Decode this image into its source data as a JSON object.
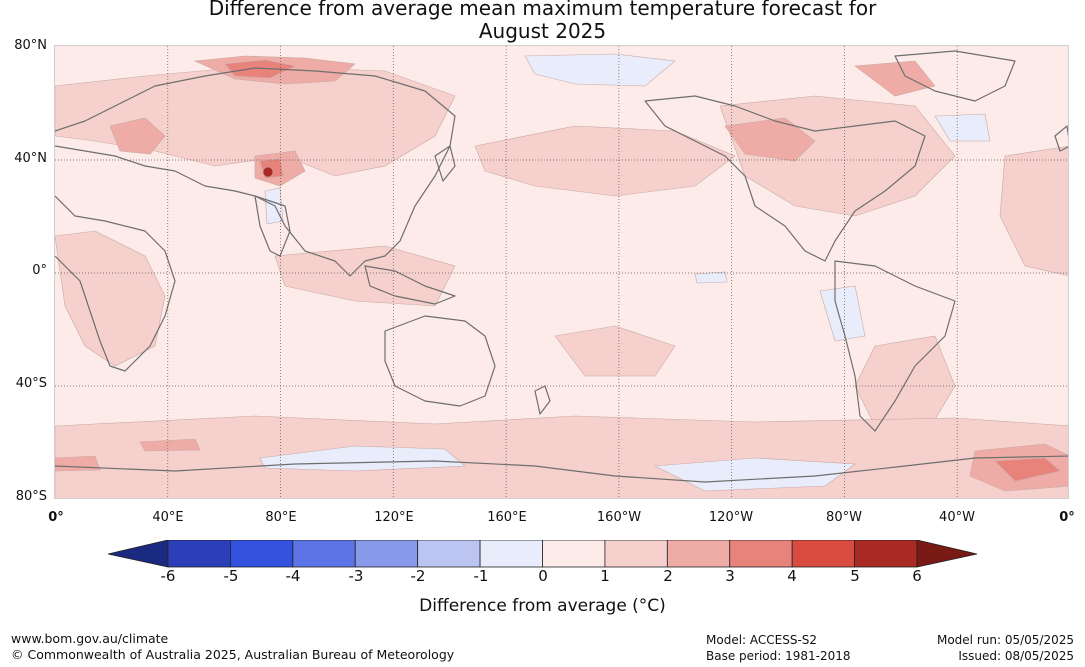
{
  "title_line1": "Difference from average mean maximum temperature forecast for",
  "title_line2": "August 2025",
  "map": {
    "lat_labels": [
      "80°N",
      "40°N",
      "0°",
      "40°S",
      "80°S"
    ],
    "lon_labels": [
      "0°",
      "40°E",
      "80°E",
      "120°E",
      "160°E",
      "160°W",
      "120°W",
      "80°W",
      "40°W",
      "0°"
    ],
    "background_color": "#fcebe8"
  },
  "colorbar": {
    "ticks": [
      "-6",
      "-5",
      "-4",
      "-3",
      "-2",
      "-1",
      "0",
      "1",
      "2",
      "3",
      "4",
      "5",
      "6"
    ],
    "colors": [
      "#1a2a80",
      "#2b3fb8",
      "#3352e0",
      "#5c74e6",
      "#8898ea",
      "#bcc5f2",
      "#e8ecfb",
      "#fcebe8",
      "#f5d0cc",
      "#efaca6",
      "#e8837c",
      "#d94a40",
      "#a92a22",
      "#7a1a14"
    ],
    "label": "Difference from average (°C)"
  },
  "footer": {
    "website": "www.bom.gov.au/climate",
    "copyright": "© Commonwealth of Australia 2025, Australian Bureau of Meteorology",
    "model": "Model: ACCESS-S2",
    "base_period": "Base period: 1981-2018",
    "model_run": "Model run: 05/05/2025",
    "issued": "Issued: 08/05/2025"
  }
}
